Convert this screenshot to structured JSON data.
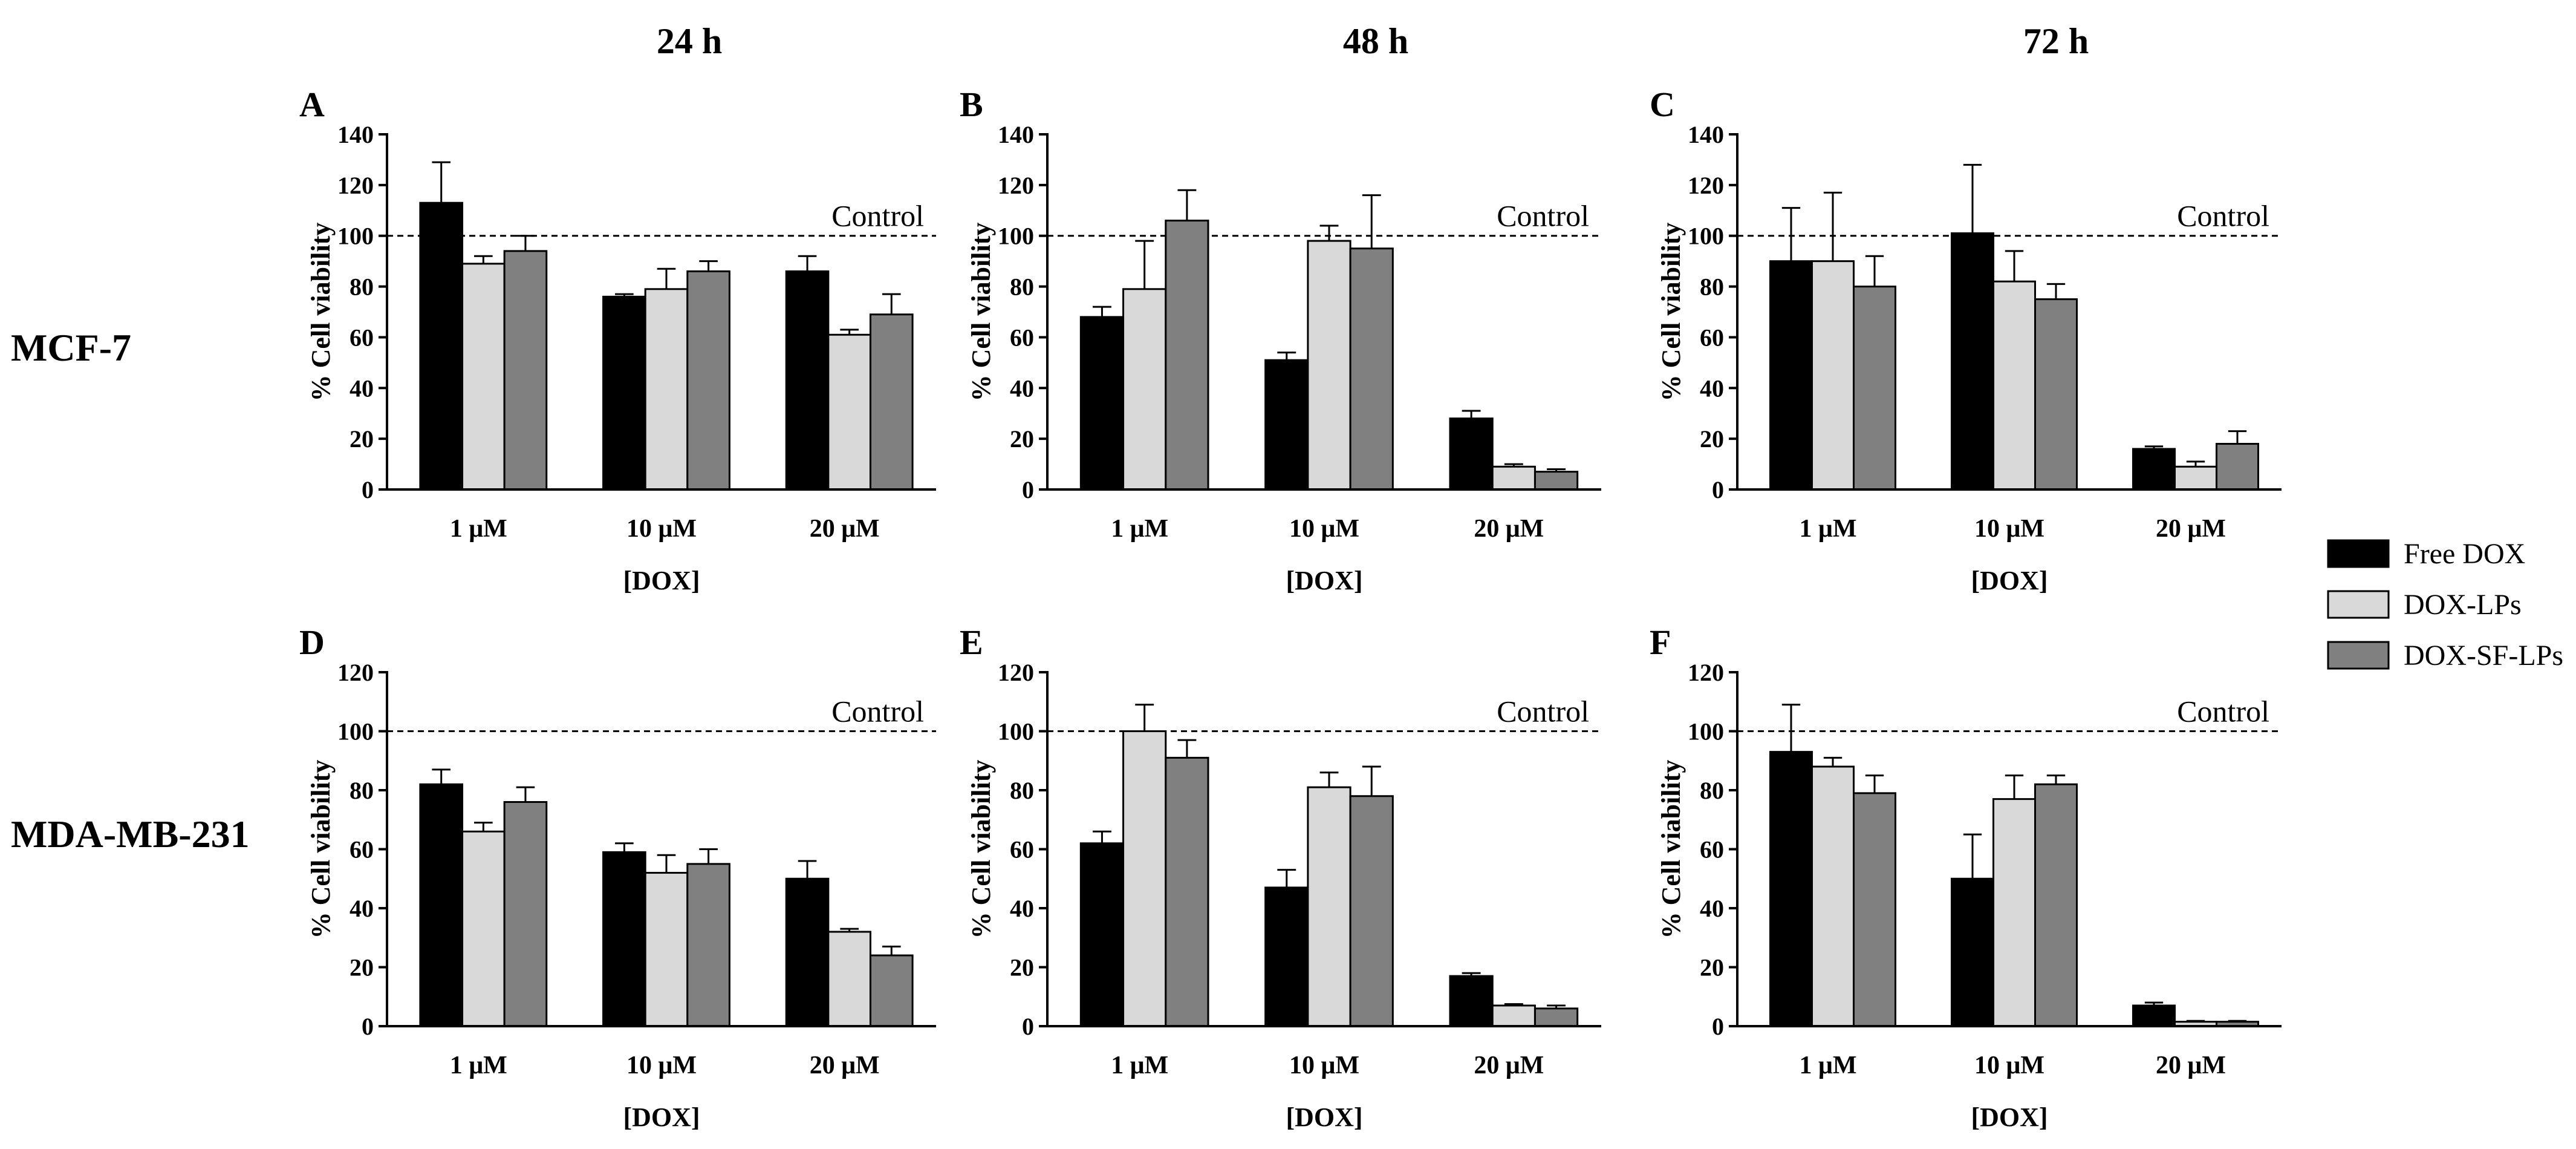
{
  "col_headers": [
    "24 h",
    "48 h",
    "72 h"
  ],
  "row_labels": [
    "MCF-7",
    "MDA-MB-231"
  ],
  "legend": {
    "placement": "right",
    "items": [
      {
        "label": "Free DOX",
        "color": "#000000"
      },
      {
        "label": "DOX-LPs",
        "color": "#d9d9d9"
      },
      {
        "label": "DOX-SF-LPs",
        "color": "#808080"
      }
    ]
  },
  "chart_data": [
    {
      "type": "bar",
      "panel": "A",
      "categories": [
        "1 μM",
        "10 μM",
        "20 μM"
      ],
      "xlabel": "[DOX]",
      "ylabel": "% Cell viability",
      "ylim": [
        0,
        140
      ],
      "yticks": [
        0,
        20,
        40,
        60,
        80,
        100,
        120,
        140
      ],
      "reference_line": {
        "y": 100,
        "label": "Control"
      },
      "series": [
        {
          "name": "Free DOX",
          "values": [
            113,
            76,
            86
          ],
          "errors": [
            16,
            1,
            6
          ]
        },
        {
          "name": "DOX-LPs",
          "values": [
            89,
            79,
            61
          ],
          "errors": [
            3,
            8,
            2
          ]
        },
        {
          "name": "DOX-SF-LPs",
          "values": [
            94,
            86,
            69
          ],
          "errors": [
            6,
            4,
            8
          ]
        }
      ]
    },
    {
      "type": "bar",
      "panel": "B",
      "categories": [
        "1 μM",
        "10 μM",
        "20 μM"
      ],
      "xlabel": "[DOX]",
      "ylabel": "% Cell viability",
      "ylim": [
        0,
        140
      ],
      "yticks": [
        0,
        20,
        40,
        60,
        80,
        100,
        120,
        140
      ],
      "reference_line": {
        "y": 100,
        "label": "Control"
      },
      "series": [
        {
          "name": "Free DOX",
          "values": [
            68,
            51,
            28
          ],
          "errors": [
            4,
            3,
            3
          ]
        },
        {
          "name": "DOX-LPs",
          "values": [
            79,
            98,
            9
          ],
          "errors": [
            19,
            6,
            1
          ]
        },
        {
          "name": "DOX-SF-LPs",
          "values": [
            106,
            95,
            7
          ],
          "errors": [
            12,
            21,
            1
          ]
        }
      ]
    },
    {
      "type": "bar",
      "panel": "C",
      "categories": [
        "1 μM",
        "10 μM",
        "20 μM"
      ],
      "xlabel": "[DOX]",
      "ylabel": "% Cell viability",
      "ylim": [
        0,
        140
      ],
      "yticks": [
        0,
        20,
        40,
        60,
        80,
        100,
        120,
        140
      ],
      "reference_line": {
        "y": 100,
        "label": "Control"
      },
      "series": [
        {
          "name": "Free DOX",
          "values": [
            90,
            101,
            16
          ],
          "errors": [
            21,
            27,
            1
          ]
        },
        {
          "name": "DOX-LPs",
          "values": [
            90,
            82,
            9
          ],
          "errors": [
            27,
            12,
            2
          ]
        },
        {
          "name": "DOX-SF-LPs",
          "values": [
            80,
            75,
            18
          ],
          "errors": [
            12,
            6,
            5
          ]
        }
      ]
    },
    {
      "type": "bar",
      "panel": "D",
      "categories": [
        "1 μM",
        "10 μM",
        "20 μM"
      ],
      "xlabel": "[DOX]",
      "ylabel": "% Cell viability",
      "ylim": [
        0,
        120
      ],
      "yticks": [
        0,
        20,
        40,
        60,
        80,
        100,
        120
      ],
      "reference_line": {
        "y": 100,
        "label": "Control"
      },
      "series": [
        {
          "name": "Free DOX",
          "values": [
            82,
            59,
            50
          ],
          "errors": [
            5,
            3,
            6
          ]
        },
        {
          "name": "DOX-LPs",
          "values": [
            66,
            52,
            32
          ],
          "errors": [
            3,
            6,
            1
          ]
        },
        {
          "name": "DOX-SF-LPs",
          "values": [
            76,
            55,
            24
          ],
          "errors": [
            5,
            5,
            3
          ]
        }
      ]
    },
    {
      "type": "bar",
      "panel": "E",
      "categories": [
        "1 μM",
        "10 μM",
        "20 μM"
      ],
      "xlabel": "[DOX]",
      "ylabel": "% Cell viability",
      "ylim": [
        0,
        120
      ],
      "yticks": [
        0,
        20,
        40,
        60,
        80,
        100,
        120
      ],
      "reference_line": {
        "y": 100,
        "label": "Control"
      },
      "series": [
        {
          "name": "Free DOX",
          "values": [
            62,
            47,
            17
          ],
          "errors": [
            4,
            6,
            1
          ]
        },
        {
          "name": "DOX-LPs",
          "values": [
            100,
            81,
            7
          ],
          "errors": [
            9,
            5,
            0.5
          ]
        },
        {
          "name": "DOX-SF-LPs",
          "values": [
            91,
            78,
            6
          ],
          "errors": [
            6,
            10,
            1
          ]
        }
      ]
    },
    {
      "type": "bar",
      "panel": "F",
      "categories": [
        "1 μM",
        "10 μM",
        "20 μM"
      ],
      "xlabel": "[DOX]",
      "ylabel": "% Cell viability",
      "ylim": [
        0,
        120
      ],
      "yticks": [
        0,
        20,
        40,
        60,
        80,
        100,
        120
      ],
      "reference_line": {
        "y": 100,
        "label": "Control"
      },
      "series": [
        {
          "name": "Free DOX",
          "values": [
            93,
            50,
            7
          ],
          "errors": [
            16,
            15,
            1
          ]
        },
        {
          "name": "DOX-LPs",
          "values": [
            88,
            77,
            1.5
          ],
          "errors": [
            3,
            8,
            0.3
          ]
        },
        {
          "name": "DOX-SF-LPs",
          "values": [
            79,
            82,
            1.5
          ],
          "errors": [
            6,
            3,
            0.3
          ]
        }
      ]
    }
  ]
}
